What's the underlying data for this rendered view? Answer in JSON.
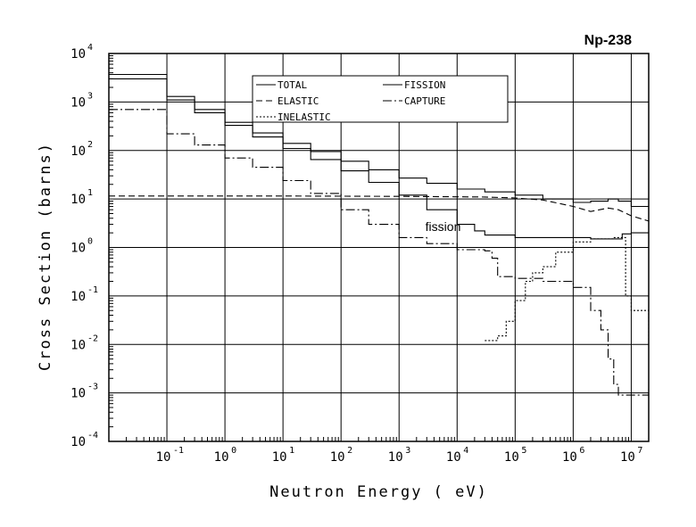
{
  "chart_data": {
    "type": "line",
    "title": "Np-238",
    "xlabel": "Neutron Energy ( eV)",
    "ylabel": "Cross Section (barns)",
    "x_scale": "log",
    "y_scale": "log",
    "xlim": [
      0.01,
      20000000
    ],
    "ylim": [
      0.0001,
      10000
    ],
    "x_ticks": [
      {
        "base": "10",
        "exp": "-1",
        "value": 0.1
      },
      {
        "base": "10",
        "exp": "0",
        "value": 1
      },
      {
        "base": "10",
        "exp": "1",
        "value": 10
      },
      {
        "base": "10",
        "exp": "2",
        "value": 100
      },
      {
        "base": "10",
        "exp": "3",
        "value": 1000
      },
      {
        "base": "10",
        "exp": "4",
        "value": 10000
      },
      {
        "base": "10",
        "exp": "5",
        "value": 100000
      },
      {
        "base": "10",
        "exp": "6",
        "value": 1000000
      },
      {
        "base": "10",
        "exp": "7",
        "value": 10000000
      }
    ],
    "y_ticks": [
      {
        "base": "10",
        "exp": "4",
        "value": 10000
      },
      {
        "base": "10",
        "exp": "3",
        "value": 1000
      },
      {
        "base": "10",
        "exp": "2",
        "value": 100
      },
      {
        "base": "10",
        "exp": "1",
        "value": 10
      },
      {
        "base": "10",
        "exp": "0",
        "value": 1
      },
      {
        "base": "10",
        "exp": "-1",
        "value": 0.1
      },
      {
        "base": "10",
        "exp": "-2",
        "value": 0.01
      },
      {
        "base": "10",
        "exp": "-3",
        "value": 0.001
      },
      {
        "base": "10",
        "exp": "-4",
        "value": 0.0001
      }
    ],
    "grid": true,
    "legend_position": "top-center",
    "annotations": [
      {
        "text": "fission",
        "x": 1500,
        "y": 2.2
      }
    ],
    "series": [
      {
        "name": "TOTAL",
        "style": "solid",
        "step": true,
        "points": [
          [
            0.01,
            3700
          ],
          [
            0.1,
            1300
          ],
          [
            0.3,
            700
          ],
          [
            1,
            380
          ],
          [
            3,
            230
          ],
          [
            10,
            140
          ],
          [
            30,
            95
          ],
          [
            100,
            60
          ],
          [
            300,
            40
          ],
          [
            1000,
            27
          ],
          [
            3000,
            21
          ],
          [
            10000,
            16
          ],
          [
            30000,
            14
          ],
          [
            100000,
            12
          ],
          [
            300000,
            10
          ],
          [
            1000000,
            8.5
          ],
          [
            2000000,
            9
          ],
          [
            4000000,
            10
          ],
          [
            6000000,
            9
          ],
          [
            10000000,
            7
          ],
          [
            20000000,
            6
          ]
        ]
      },
      {
        "name": "FISSION",
        "style": "solid",
        "step": true,
        "points": [
          [
            0.01,
            3000
          ],
          [
            0.1,
            1100
          ],
          [
            0.3,
            600
          ],
          [
            1,
            330
          ],
          [
            3,
            190
          ],
          [
            10,
            110
          ],
          [
            30,
            65
          ],
          [
            100,
            38
          ],
          [
            300,
            22
          ],
          [
            1000,
            12
          ],
          [
            3000,
            6
          ],
          [
            10000,
            3
          ],
          [
            20000,
            2.2
          ],
          [
            30000,
            1.8
          ],
          [
            100000,
            1.6
          ],
          [
            300000,
            1.6
          ],
          [
            1000000,
            1.6
          ],
          [
            2000000,
            1.5
          ],
          [
            5000000,
            1.5
          ],
          [
            7000000,
            1.9
          ],
          [
            10000000,
            2
          ],
          [
            20000000,
            2.1
          ]
        ]
      },
      {
        "name": "ELASTIC",
        "style": "dashed",
        "step": false,
        "points": [
          [
            0.01,
            11.5
          ],
          [
            10,
            11.5
          ],
          [
            1000,
            11.3
          ],
          [
            30000,
            11
          ],
          [
            100000,
            10.5
          ],
          [
            300000,
            9.5
          ],
          [
            1000000,
            7
          ],
          [
            2000000,
            5.5
          ],
          [
            4000000,
            6.5
          ],
          [
            6000000,
            6
          ],
          [
            10000000,
            4.5
          ],
          [
            20000000,
            3.5
          ]
        ]
      },
      {
        "name": "CAPTURE",
        "style": "dashdot",
        "step": true,
        "points": [
          [
            0.01,
            700
          ],
          [
            0.1,
            220
          ],
          [
            0.3,
            130
          ],
          [
            1,
            70
          ],
          [
            3,
            45
          ],
          [
            10,
            24
          ],
          [
            30,
            13
          ],
          [
            100,
            6
          ],
          [
            300,
            3
          ],
          [
            1000,
            1.6
          ],
          [
            3000,
            1.2
          ],
          [
            10000,
            0.9
          ],
          [
            30000,
            0.85
          ],
          [
            40000,
            0.6
          ],
          [
            50000,
            0.25
          ],
          [
            100000,
            0.23
          ],
          [
            300000,
            0.2
          ],
          [
            1000000,
            0.15
          ],
          [
            2000000,
            0.05
          ],
          [
            3000000,
            0.02
          ],
          [
            4000000,
            0.005
          ],
          [
            5000000,
            0.0015
          ],
          [
            6000000,
            0.0009
          ],
          [
            10000000,
            0.0009
          ],
          [
            20000000,
            0.0012
          ]
        ]
      },
      {
        "name": "INELASTIC",
        "style": "dotted",
        "step": true,
        "points": [
          [
            30000,
            0.012
          ],
          [
            50000,
            0.015
          ],
          [
            70000,
            0.03
          ],
          [
            100000,
            0.08
          ],
          [
            150000,
            0.2
          ],
          [
            200000,
            0.3
          ],
          [
            300000,
            0.4
          ],
          [
            500000,
            0.8
          ],
          [
            1000000,
            1.3
          ],
          [
            2000000,
            1.5
          ],
          [
            5000000,
            1.6
          ],
          [
            7000000,
            1.6
          ],
          [
            8000000,
            0.1
          ],
          [
            10000000,
            0.05
          ],
          [
            20000000,
            0.012
          ]
        ]
      }
    ]
  }
}
